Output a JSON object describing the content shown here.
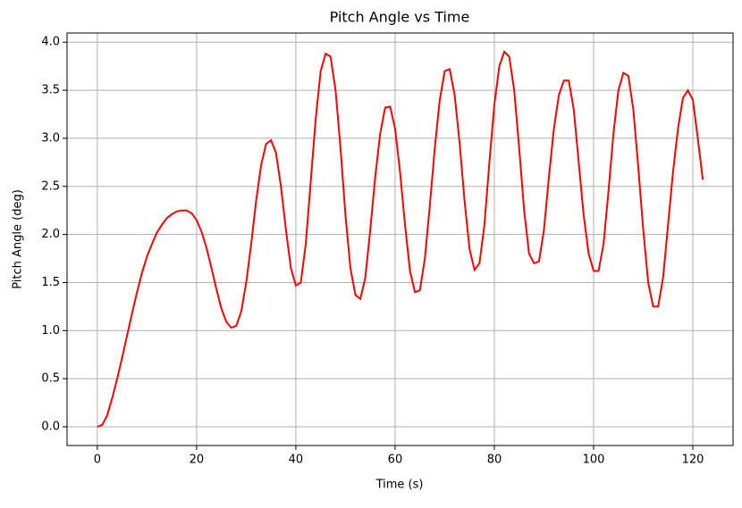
{
  "chart_data": {
    "type": "line",
    "title": "Pitch Angle vs Time",
    "xlabel": "Time (s)",
    "ylabel": "Pitch Angle (deg)",
    "x": [
      0,
      1,
      2,
      3,
      4,
      5,
      6,
      7,
      8,
      9,
      10,
      11,
      12,
      13,
      14,
      15,
      16,
      17,
      18,
      19,
      20,
      21,
      22,
      23,
      24,
      25,
      26,
      27,
      28,
      29,
      30,
      31,
      32,
      33,
      34,
      35,
      36,
      37,
      38,
      39,
      40,
      41,
      42,
      43,
      44,
      45,
      46,
      47,
      48,
      49,
      50,
      51,
      52,
      53,
      54,
      55,
      56,
      57,
      58,
      59,
      60,
      61,
      62,
      63,
      64,
      65,
      66,
      67,
      68,
      69,
      70,
      71,
      72,
      73,
      74,
      75,
      76,
      77,
      78,
      79,
      80,
      81,
      82,
      83,
      84,
      85,
      86,
      87,
      88,
      89,
      90,
      91,
      92,
      93,
      94,
      95,
      96,
      97,
      98,
      99,
      100,
      101,
      102,
      103,
      104,
      105,
      106,
      107,
      108,
      109,
      110,
      111,
      112,
      113,
      114,
      115,
      116,
      117,
      118,
      119,
      120,
      121,
      122
    ],
    "series": [
      {
        "name": "Pitch Angle",
        "color": "#ff0000",
        "values": [
          0,
          0.02,
          0.12,
          0.3,
          0.5,
          0.72,
          0.95,
          1.18,
          1.4,
          1.6,
          1.77,
          1.9,
          2.02,
          2.1,
          2.17,
          2.21,
          2.24,
          2.25,
          2.25,
          2.22,
          2.15,
          2.03,
          1.86,
          1.65,
          1.43,
          1.23,
          1.09,
          1.03,
          1.05,
          1.2,
          1.5,
          1.9,
          2.35,
          2.72,
          2.94,
          2.98,
          2.85,
          2.5,
          2.05,
          1.65,
          1.47,
          1.5,
          1.9,
          2.55,
          3.2,
          3.7,
          3.88,
          3.85,
          3.5,
          2.9,
          2.2,
          1.65,
          1.37,
          1.33,
          1.55,
          2.05,
          2.6,
          3.05,
          3.32,
          3.33,
          3.1,
          2.65,
          2.1,
          1.62,
          1.4,
          1.42,
          1.75,
          2.3,
          2.9,
          3.4,
          3.7,
          3.72,
          3.45,
          2.95,
          2.35,
          1.85,
          1.63,
          1.7,
          2.1,
          2.75,
          3.35,
          3.75,
          3.9,
          3.85,
          3.5,
          2.9,
          2.25,
          1.8,
          1.7,
          1.72,
          2.05,
          2.6,
          3.1,
          3.45,
          3.6,
          3.6,
          3.3,
          2.75,
          2.2,
          1.8,
          1.62,
          1.62,
          1.9,
          2.45,
          3.05,
          3.5,
          3.68,
          3.65,
          3.3,
          2.7,
          2.05,
          1.5,
          1.25,
          1.25,
          1.55,
          2.1,
          2.65,
          3.1,
          3.42,
          3.5,
          3.4,
          3.0,
          2.57
        ]
      }
    ],
    "xlim": [
      -6.1,
      128.1
    ],
    "xticks": [
      0,
      20,
      40,
      60,
      80,
      100,
      120
    ],
    "ylim": [
      -0.195,
      4.095
    ],
    "yticks": [
      {
        "value": 0,
        "label": "0.0"
      },
      0.5,
      {
        "value": 1,
        "label": "1.0"
      },
      1.5,
      {
        "value": 2,
        "label": "2.0"
      },
      2.5,
      {
        "value": 3,
        "label": "3.0"
      },
      3.5,
      {
        "value": 4,
        "label": "4.0"
      }
    ],
    "grid": true
  }
}
